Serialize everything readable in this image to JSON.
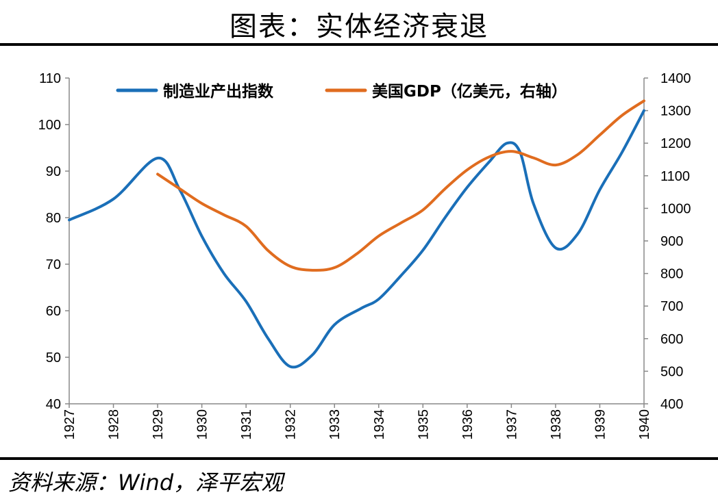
{
  "header": {
    "title": "图表：实体经济衰退"
  },
  "footer": {
    "source": "资料来源：Wind，泽平宏观"
  },
  "colors": {
    "series1": "#1a6fb8",
    "series2": "#e06c1f",
    "axis": "#888888",
    "rule": "#000000"
  },
  "chart_data": {
    "type": "line",
    "title": "",
    "xlabel": "",
    "ylabel": "",
    "x_ticks": [
      "1927",
      "1928",
      "1929",
      "1930",
      "1931",
      "1932",
      "1933",
      "1934",
      "1935",
      "1936",
      "1937",
      "1938",
      "1939",
      "1940"
    ],
    "y_left": {
      "ticks": [
        "40",
        "50",
        "60",
        "70",
        "80",
        "90",
        "100",
        "110"
      ],
      "range": [
        40,
        110
      ]
    },
    "y_right": {
      "ticks": [
        "400",
        "500",
        "600",
        "700",
        "800",
        "900",
        "1000",
        "1100",
        "1200",
        "1300",
        "1400"
      ],
      "range": [
        400,
        1400
      ]
    },
    "grid": false,
    "legend_position": "top",
    "series": [
      {
        "name": "制造业产出指数",
        "axis": "left",
        "x": [
          1927,
          1928,
          1929,
          1929.5,
          1930,
          1930.5,
          1931,
          1931.5,
          1932,
          1932.5,
          1933,
          1933.6,
          1934,
          1934.5,
          1935,
          1935.5,
          1936,
          1936.5,
          1936.9,
          1937.2,
          1937.5,
          1938,
          1938.5,
          1939,
          1939.5,
          1940
        ],
        "values": [
          79.5,
          84,
          92.8,
          86,
          76,
          68,
          62,
          54,
          48,
          50.5,
          57,
          60.5,
          62.5,
          67.5,
          73,
          80,
          86.5,
          92,
          96,
          94,
          83,
          73.5,
          76.5,
          86,
          94,
          103
        ]
      },
      {
        "name": "美国GDP（亿美元，右轴）",
        "axis": "right",
        "x": [
          1929,
          1929.5,
          1930,
          1930.5,
          1931,
          1931.5,
          1932,
          1932.5,
          1933,
          1933.5,
          1934,
          1934.5,
          1935,
          1935.5,
          1936,
          1936.5,
          1937,
          1937.5,
          1938,
          1938.5,
          1939,
          1939.5,
          1940
        ],
        "values": [
          1105,
          1060,
          1015,
          980,
          945,
          870,
          822,
          810,
          818,
          860,
          915,
          955,
          995,
          1060,
          1118,
          1158,
          1175,
          1155,
          1133,
          1165,
          1225,
          1285,
          1330
        ]
      }
    ]
  }
}
